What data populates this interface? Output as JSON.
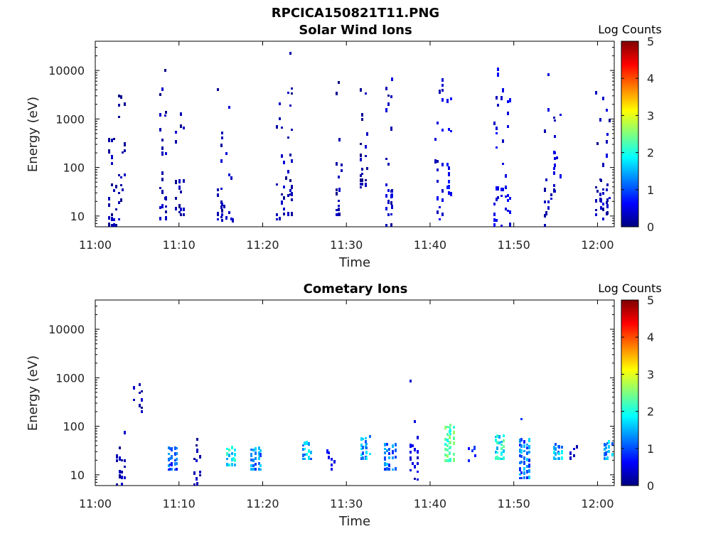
{
  "figure": {
    "title": "RPCICA150821T11.PNG"
  },
  "colormap": {
    "name": "jet",
    "stops": [
      "#00007f",
      "#0000ff",
      "#007fff",
      "#00ffff",
      "#7fff7f",
      "#ffff00",
      "#ff7f00",
      "#ff0000",
      "#7f0000"
    ]
  },
  "chart_data": [
    {
      "type": "heatmap",
      "title": "Solar Wind Ions",
      "xlabel": "Time",
      "ylabel": "Energy (eV)",
      "x_ticks": [
        "11:00",
        "11:10",
        "11:20",
        "11:30",
        "11:40",
        "11:50",
        "12:00"
      ],
      "x_range": [
        "11:00",
        "12:02"
      ],
      "y_scale": "log",
      "y_ticks": [
        "10",
        "100",
        "1000",
        "10000"
      ],
      "y_range": [
        6,
        40000
      ],
      "colorbar": {
        "title": "Log Counts",
        "range": [
          0,
          5
        ],
        "ticks": [
          "0",
          "1",
          "2",
          "3",
          "4",
          "5"
        ]
      },
      "bursts": [
        {
          "time": "11:02",
          "emin": 6,
          "emax": 3000,
          "level": 0.2
        },
        {
          "time": "11:03",
          "emin": 8,
          "emax": 4000,
          "level": 0.2
        },
        {
          "time": "11:08",
          "emin": 8,
          "emax": 12000,
          "level": 0.2
        },
        {
          "time": "11:10",
          "emin": 10,
          "emax": 5000,
          "level": 0.2
        },
        {
          "time": "11:15",
          "emin": 6,
          "emax": 6000,
          "level": 0.3
        },
        {
          "time": "11:16",
          "emin": 6,
          "emax": 3000,
          "level": 0.3
        },
        {
          "time": "11:22",
          "emin": 8,
          "emax": 3000,
          "level": 0.3
        },
        {
          "time": "11:23",
          "emin": 10,
          "emax": 30000,
          "level": 0.2
        },
        {
          "time": "11:29",
          "emin": 10,
          "emax": 8000,
          "level": 0.2
        },
        {
          "time": "11:32",
          "emin": 30,
          "emax": 12000,
          "level": 0.2
        },
        {
          "time": "11:35",
          "emin": 6,
          "emax": 8000,
          "level": 0.3
        },
        {
          "time": "11:41",
          "emin": 8,
          "emax": 10000,
          "level": 0.4
        },
        {
          "time": "11:42",
          "emin": 20,
          "emax": 3000,
          "level": 0.6
        },
        {
          "time": "11:48",
          "emin": 6,
          "emax": 10000,
          "level": 0.5
        },
        {
          "time": "11:49",
          "emin": 6,
          "emax": 5000,
          "level": 0.5
        },
        {
          "time": "11:54",
          "emin": 6,
          "emax": 8000,
          "level": 0.3
        },
        {
          "time": "11:55",
          "emin": 30,
          "emax": 2000,
          "level": 0.4
        },
        {
          "time": "12:00",
          "emin": 10,
          "emax": 8000,
          "level": 0.2
        },
        {
          "time": "12:01",
          "emin": 8,
          "emax": 3000,
          "level": 0.3
        }
      ]
    },
    {
      "type": "heatmap",
      "title": "Cometary Ions",
      "xlabel": "Time",
      "ylabel": "Energy (eV)",
      "x_ticks": [
        "11:00",
        "11:10",
        "11:20",
        "11:30",
        "11:40",
        "11:50",
        "12:00"
      ],
      "x_range": [
        "11:00",
        "12:02"
      ],
      "y_scale": "log",
      "y_ticks": [
        "10",
        "100",
        "1000",
        "10000"
      ],
      "y_range": [
        6,
        40000
      ],
      "colorbar": {
        "title": "Log Counts",
        "range": [
          0,
          5
        ],
        "ticks": [
          "0",
          "1",
          "2",
          "3",
          "4",
          "5"
        ]
      },
      "bursts": [
        {
          "time": "11:03",
          "emin": 6,
          "emax": 120,
          "level": 0.2
        },
        {
          "time": "11:05",
          "emin": 150,
          "emax": 1000,
          "level": 0.2
        },
        {
          "time": "11:09",
          "emin": 12,
          "emax": 40,
          "level": 1.0
        },
        {
          "time": "11:12",
          "emin": 6,
          "emax": 120,
          "level": 0.2
        },
        {
          "time": "11:16",
          "emin": 15,
          "emax": 35,
          "level": 1.8
        },
        {
          "time": "11:19",
          "emin": 12,
          "emax": 35,
          "level": 1.3
        },
        {
          "time": "11:25",
          "emin": 20,
          "emax": 45,
          "level": 1.5
        },
        {
          "time": "11:28",
          "emin": 12,
          "emax": 40,
          "level": 0.5
        },
        {
          "time": "11:32",
          "emin": 20,
          "emax": 60,
          "level": 1.4
        },
        {
          "time": "11:35",
          "emin": 12,
          "emax": 40,
          "level": 1.3
        },
        {
          "time": "11:38",
          "emin": 6,
          "emax": 1000,
          "level": 0.4
        },
        {
          "time": "11:42",
          "emin": 18,
          "emax": 100,
          "level": 2.2
        },
        {
          "time": "11:45",
          "emin": 18,
          "emax": 45,
          "level": 0.8
        },
        {
          "time": "11:48",
          "emin": 20,
          "emax": 60,
          "level": 1.9
        },
        {
          "time": "11:51",
          "emin": 8,
          "emax": 500,
          "level": 1.2
        },
        {
          "time": "11:55",
          "emin": 20,
          "emax": 40,
          "level": 1.5
        },
        {
          "time": "11:57",
          "emin": 8,
          "emax": 35,
          "level": 0.3
        },
        {
          "time": "12:01",
          "emin": 20,
          "emax": 45,
          "level": 1.4
        }
      ]
    }
  ]
}
